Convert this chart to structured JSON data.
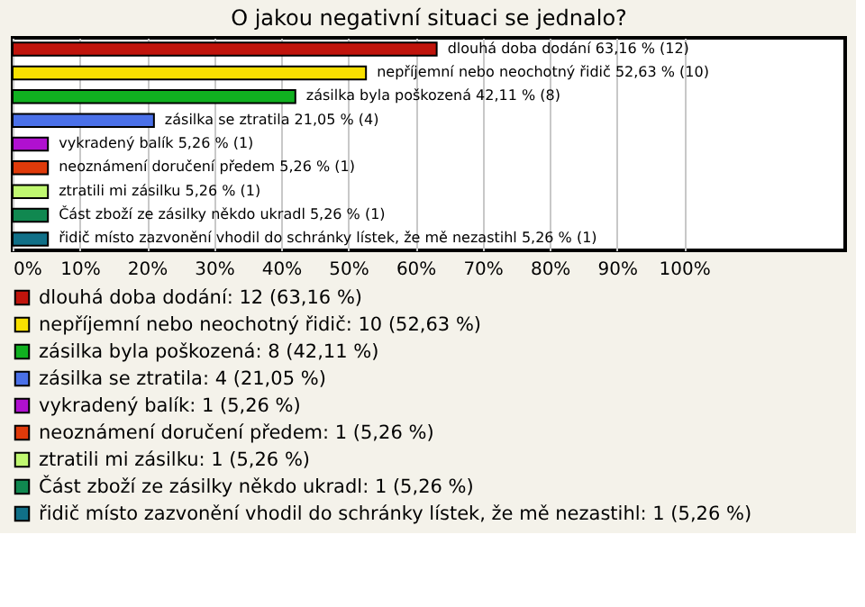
{
  "chart_data": {
    "type": "bar",
    "orientation": "horizontal",
    "title": "O jakou negativní situaci se jednalo?",
    "categories": [
      null,
      null,
      null,
      null,
      null,
      null,
      null,
      null,
      null
    ],
    "series": [
      {
        "name": "dlouhá doba dodání: 12 (63,16 %)",
        "color": "#c0140c",
        "values": [
          63.16,
          null,
          null,
          null,
          null,
          null,
          null,
          null,
          null
        ],
        "value_labels": [
          "dlouhá doba dodání 63,16 % (12)",
          null,
          null,
          null,
          null,
          null,
          null,
          null,
          null
        ]
      },
      {
        "name": "nepříjemní nebo neochotný řidič: 10 (52,63 %)",
        "color": "#f8e000",
        "values": [
          null,
          52.63,
          null,
          null,
          null,
          null,
          null,
          null,
          null
        ],
        "value_labels": [
          null,
          "nepříjemní nebo neochotný řidič 52,63 % (10)",
          null,
          null,
          null,
          null,
          null,
          null,
          null
        ]
      },
      {
        "name": "zásilka byla poškozená: 8 (42,11 %)",
        "color": "#10b020",
        "values": [
          null,
          null,
          42.11,
          null,
          null,
          null,
          null,
          null,
          null
        ],
        "value_labels": [
          null,
          null,
          "zásilka byla poškozená 42,11 % (8)",
          null,
          null,
          null,
          null,
          null,
          null
        ]
      },
      {
        "name": "zásilka se ztratila: 4 (21,05 %)",
        "color": "#4a70e8",
        "values": [
          null,
          null,
          null,
          21.05,
          null,
          null,
          null,
          null,
          null
        ],
        "value_labels": [
          null,
          null,
          null,
          "zásilka se ztratila 21,05 % (4)",
          null,
          null,
          null,
          null,
          null
        ]
      },
      {
        "name": "vykradený balík: 1 (5,26 %)",
        "color": "#b010d0",
        "values": [
          null,
          null,
          null,
          null,
          5.26,
          null,
          null,
          null,
          null
        ],
        "value_labels": [
          null,
          null,
          null,
          null,
          "vykradený balík 5,26 % (1)",
          null,
          null,
          null,
          null
        ]
      },
      {
        "name": "neoznámení doručení předem: 1 (5,26 %)",
        "color": "#e03a0a",
        "values": [
          null,
          null,
          null,
          null,
          null,
          5.26,
          null,
          null,
          null
        ],
        "value_labels": [
          null,
          null,
          null,
          null,
          null,
          "neoznámení doručení předem 5,26 % (1)",
          null,
          null,
          null
        ]
      },
      {
        "name": "ztratili mi zásilku: 1 (5,26 %)",
        "color": "#c0f870",
        "values": [
          null,
          null,
          null,
          null,
          null,
          null,
          5.26,
          null,
          null
        ],
        "value_labels": [
          null,
          null,
          null,
          null,
          null,
          null,
          "ztratili mi zásilku 5,26 % (1)",
          null,
          null
        ]
      },
      {
        "name": "Část zboží ze zásilky někdo ukradl: 1 (5,26 %)",
        "color": "#108850",
        "values": [
          null,
          null,
          null,
          null,
          null,
          null,
          null,
          5.26,
          null
        ],
        "value_labels": [
          null,
          null,
          null,
          null,
          null,
          null,
          null,
          "Část zboží ze zásilky někdo ukradl 5,26 % (1)",
          null
        ]
      },
      {
        "name": "řidič místo zazvonění vhodil do schránky lístek, že mě nezastihl: 1 (5,26 %)",
        "color": "#107088",
        "values": [
          null,
          null,
          null,
          null,
          null,
          null,
          null,
          null,
          5.26
        ],
        "value_labels": [
          null,
          null,
          null,
          null,
          null,
          null,
          null,
          null,
          "řidič místo zazvonění vhodil do schránky lístek, že mě nezastihl 5,26 % (1)"
        ]
      }
    ],
    "xlim": [
      0,
      124
    ],
    "xticks": [
      {
        "value": 0,
        "label": "0%"
      },
      {
        "value": 10,
        "label": "10%"
      },
      {
        "value": 20,
        "label": "20%"
      },
      {
        "value": 30,
        "label": "30%"
      },
      {
        "value": 40,
        "label": "40%"
      },
      {
        "value": 50,
        "label": "50%"
      },
      {
        "value": 60,
        "label": "60%"
      },
      {
        "value": 70,
        "label": "70%"
      },
      {
        "value": 80,
        "label": "80%"
      },
      {
        "value": 90,
        "label": "90%"
      },
      {
        "value": 100,
        "label": "100%"
      }
    ],
    "grid": "x",
    "tick_labels": "x",
    "legend": "bottom"
  }
}
